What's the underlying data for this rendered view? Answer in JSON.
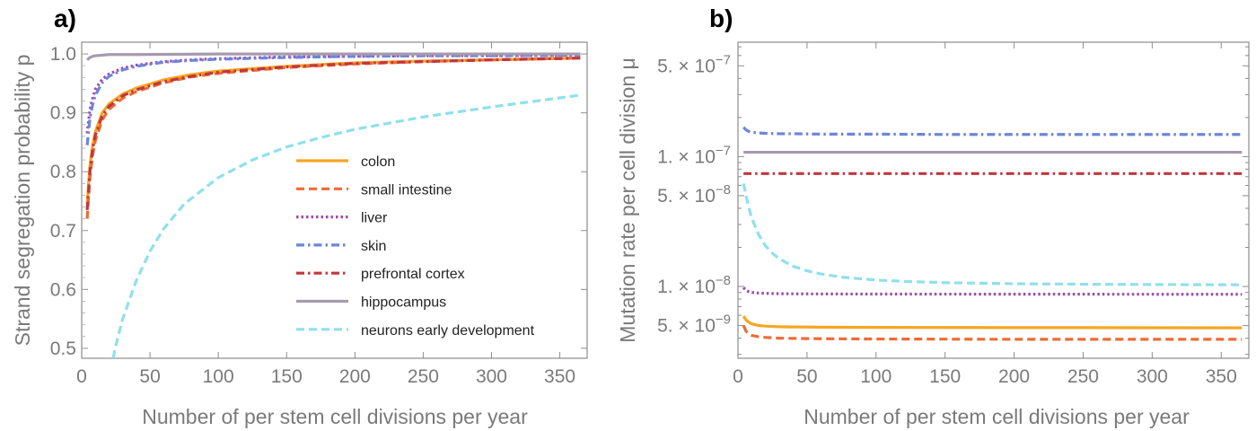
{
  "chart_data": [
    {
      "panel": "a)",
      "type": "line",
      "xlabel": "Number of per stem cell divisions per year",
      "ylabel": "Strand segregation probability p",
      "xlim": [
        0,
        370
      ],
      "ylim": [
        0.483,
        1.02
      ],
      "xticks": [
        0,
        50,
        100,
        150,
        200,
        250,
        300,
        350
      ],
      "yticks": [
        0.5,
        0.6,
        0.7,
        0.8,
        0.9,
        1.0
      ],
      "ytick_labels": [
        "0.5",
        "0.6",
        "0.7",
        "0.8",
        "0.9",
        "1.0"
      ],
      "legend_position": "lower-right",
      "series": [
        {
          "name": "colon",
          "color": "#F5A623",
          "style": "solid",
          "x": [
            4,
            6,
            8,
            10,
            15,
            20,
            30,
            40,
            60,
            80,
            100,
            150,
            200,
            250,
            300,
            365
          ],
          "y": [
            0.745,
            0.81,
            0.845,
            0.868,
            0.9,
            0.915,
            0.932,
            0.942,
            0.956,
            0.965,
            0.971,
            0.979,
            0.985,
            0.988,
            0.99,
            0.993
          ]
        },
        {
          "name": "small intestine",
          "color": "#EE6B35",
          "style": "dashed",
          "x": [
            4,
            6,
            8,
            10,
            15,
            20,
            30,
            40,
            60,
            80,
            100,
            150,
            200,
            250,
            300,
            365
          ],
          "y": [
            0.72,
            0.79,
            0.828,
            0.853,
            0.888,
            0.906,
            0.925,
            0.936,
            0.951,
            0.961,
            0.967,
            0.977,
            0.983,
            0.987,
            0.99,
            0.993
          ]
        },
        {
          "name": "liver",
          "color": "#A24AAE",
          "style": "dotted",
          "x": [
            4,
            6,
            8,
            10,
            15,
            20,
            30,
            40,
            60,
            80,
            100,
            150,
            200,
            250,
            300,
            365
          ],
          "y": [
            0.865,
            0.905,
            0.925,
            0.94,
            0.957,
            0.966,
            0.976,
            0.981,
            0.987,
            0.99,
            0.992,
            0.995,
            0.996,
            0.997,
            0.997,
            0.998
          ]
        },
        {
          "name": "skin",
          "color": "#6C86D8",
          "style": "dashdot",
          "x": [
            4,
            6,
            8,
            10,
            15,
            20,
            30,
            40,
            60,
            80,
            100,
            150,
            200,
            250,
            300,
            365
          ],
          "y": [
            0.845,
            0.89,
            0.914,
            0.93,
            0.951,
            0.962,
            0.973,
            0.979,
            0.986,
            0.989,
            0.991,
            0.994,
            0.996,
            0.997,
            0.997,
            0.998
          ]
        },
        {
          "name": "prefrontal cortex",
          "color": "#C0373E",
          "style": "dashdot",
          "x": [
            4,
            6,
            8,
            10,
            15,
            20,
            30,
            40,
            60,
            80,
            100,
            150,
            200,
            250,
            300,
            365
          ],
          "y": [
            0.735,
            0.8,
            0.838,
            0.862,
            0.895,
            0.911,
            0.929,
            0.939,
            0.953,
            0.962,
            0.969,
            0.978,
            0.984,
            0.987,
            0.99,
            0.993
          ]
        },
        {
          "name": "hippocampus",
          "color": "#A69AAE",
          "style": "solid",
          "x": [
            4,
            6,
            8,
            10,
            15,
            20,
            40,
            100,
            200,
            365
          ],
          "y": [
            0.99,
            0.994,
            0.996,
            0.997,
            0.998,
            0.999,
            0.999,
            1.0,
            1.0,
            1.0
          ]
        },
        {
          "name": "neurons early development",
          "color": "#8FE0EC",
          "style": "dashed",
          "x": [
            23,
            25,
            30,
            40,
            50,
            60,
            75,
            100,
            125,
            150,
            175,
            200,
            250,
            300,
            365
          ],
          "y": [
            0.483,
            0.505,
            0.55,
            0.615,
            0.665,
            0.703,
            0.745,
            0.79,
            0.82,
            0.842,
            0.858,
            0.872,
            0.893,
            0.91,
            0.93
          ]
        }
      ]
    },
    {
      "panel": "b)",
      "type": "line",
      "xlabel": "Number of per stem cell divisions per year",
      "ylabel": "Mutation rate per cell division μ",
      "xlim": [
        0,
        370
      ],
      "ylim": [
        2.8e-09,
        7.6e-07
      ],
      "yscale": "log",
      "xticks": [
        0,
        50,
        100,
        150,
        200,
        250,
        300,
        350
      ],
      "ytick_positions": [
        5e-07,
        1e-07,
        5e-08,
        1e-08,
        5e-09
      ],
      "ytick_mantissas": [
        "5.",
        "1.",
        "5.",
        "1.",
        "5."
      ],
      "ytick_exponents": [
        "−7",
        "−7",
        "−8",
        "−8",
        "−9"
      ],
      "ytick_mult": " × 10",
      "series": [
        {
          "name": "colon",
          "color": "#F5A623",
          "style": "solid",
          "x": [
            4,
            6,
            8,
            10,
            15,
            20,
            30,
            40,
            60,
            80,
            100,
            150,
            200,
            250,
            300,
            365
          ],
          "y": [
            5.9e-09,
            5.5e-09,
            5.3e-09,
            5.15e-09,
            5e-09,
            4.95e-09,
            4.9e-09,
            4.88e-09,
            4.86e-09,
            4.85e-09,
            4.84e-09,
            4.83e-09,
            4.82e-09,
            4.82e-09,
            4.81e-09,
            4.8e-09
          ]
        },
        {
          "name": "small intestine",
          "color": "#EE6B35",
          "style": "dashed",
          "x": [
            4,
            6,
            8,
            10,
            15,
            20,
            30,
            40,
            60,
            80,
            100,
            150,
            200,
            250,
            300,
            365
          ],
          "y": [
            5e-09,
            4.5e-09,
            4.3e-09,
            4.2e-09,
            4.1e-09,
            4.05e-09,
            4e-09,
            3.98e-09,
            3.96e-09,
            3.95e-09,
            3.94e-09,
            3.93e-09,
            3.92e-09,
            3.92e-09,
            3.92e-09,
            3.92e-09
          ]
        },
        {
          "name": "liver",
          "color": "#A24AAE",
          "style": "dotted",
          "x": [
            4,
            6,
            8,
            10,
            15,
            20,
            30,
            40,
            60,
            80,
            100,
            150,
            200,
            250,
            300,
            365
          ],
          "y": [
            9.8e-09,
            9.3e-09,
            9.1e-09,
            9e-09,
            8.9e-09,
            8.85e-09,
            8.8e-09,
            8.78e-09,
            8.76e-09,
            8.75e-09,
            8.74e-09,
            8.73e-09,
            8.72e-09,
            8.72e-09,
            8.71e-09,
            8.7e-09
          ]
        },
        {
          "name": "skin",
          "color": "#6C86D8",
          "style": "dashdot",
          "x": [
            4,
            6,
            8,
            10,
            15,
            20,
            30,
            40,
            60,
            80,
            100,
            150,
            200,
            250,
            300,
            365
          ],
          "y": [
            1.68e-07,
            1.6e-07,
            1.56e-07,
            1.54e-07,
            1.52e-07,
            1.51e-07,
            1.5e-07,
            1.5e-07,
            1.49e-07,
            1.49e-07,
            1.49e-07,
            1.48e-07,
            1.48e-07,
            1.48e-07,
            1.48e-07,
            1.48e-07
          ]
        },
        {
          "name": "prefrontal cortex",
          "color": "#C0373E",
          "style": "dashdot",
          "x": [
            4,
            20,
            100,
            200,
            365
          ],
          "y": [
            7.4e-08,
            7.4e-08,
            7.4e-08,
            7.4e-08,
            7.4e-08
          ]
        },
        {
          "name": "hippocampus",
          "color": "#A69AAE",
          "style": "solid",
          "x": [
            4,
            20,
            100,
            200,
            365
          ],
          "y": [
            1.08e-07,
            1.08e-07,
            1.08e-07,
            1.08e-07,
            1.08e-07
          ]
        },
        {
          "name": "neurons early development",
          "color": "#8FE0EC",
          "style": "dashed",
          "x": [
            4,
            6,
            8,
            10,
            15,
            20,
            25,
            30,
            40,
            50,
            60,
            75,
            100,
            125,
            150,
            200,
            250,
            300,
            365
          ],
          "y": [
            6.2e-08,
            4.9e-08,
            4e-08,
            3.35e-08,
            2.5e-08,
            2.05e-08,
            1.8e-08,
            1.63e-08,
            1.43e-08,
            1.32e-08,
            1.25e-08,
            1.18e-08,
            1.12e-08,
            1.09e-08,
            1.07e-08,
            1.05e-08,
            1.04e-08,
            1.035e-08,
            1.03e-08
          ]
        }
      ]
    }
  ]
}
